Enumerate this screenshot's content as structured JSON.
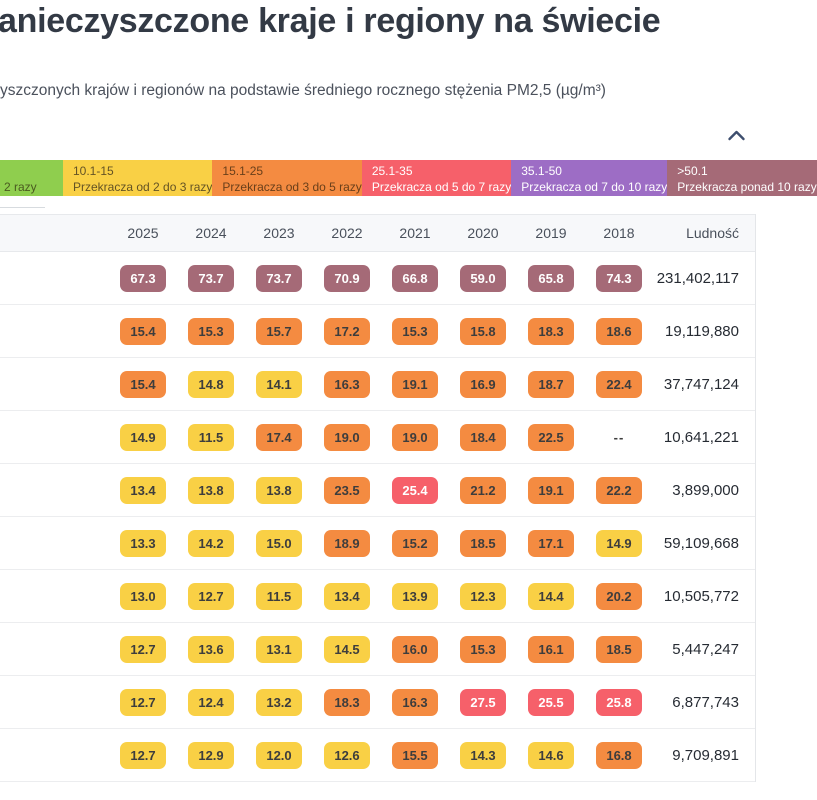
{
  "header": {
    "title": "anieczyszczone kraje i regiony na świecie",
    "subtitle": "yszczonych krajów i regionów na podstawie średniego rocznego stężenia PM2,5 (µg/m³)"
  },
  "legend": {
    "collapse_icon": "chevron-up",
    "segments": [
      {
        "range": "",
        "label": "2 razy",
        "color": "#8fce4e",
        "text_color": "#4a5a20"
      },
      {
        "range": "10.1-15",
        "label": "Przekracza od 2 do 3 razy",
        "color": "#f9d045",
        "text_color": "#645325"
      },
      {
        "range": "15.1-25",
        "label": "Przekracza od 3 do 5 razy",
        "color": "#f48b41",
        "text_color": "#693f1a"
      },
      {
        "range": "25.1-35",
        "label": "Przekracza od 5 do 7 razy",
        "color": "#f6606a",
        "text_color": "#ffffff"
      },
      {
        "range": "35.1-50",
        "label": "Przekracza od 7 do 10 razy",
        "color": "#9d6dc5",
        "text_color": "#ffffff"
      },
      {
        "range": ">50.1",
        "label": "Przekracza ponad 10 razy",
        "color": "#a56a77",
        "text_color": "#ffffff"
      }
    ]
  },
  "badge_categories": [
    {
      "max": 15,
      "color": "#f9d045",
      "text_color": "#3d3d3d"
    },
    {
      "max": 25,
      "color": "#f48b41",
      "text_color": "#3d3d3d"
    },
    {
      "max": 35,
      "color": "#f6606a",
      "text_color": "#ffffff"
    },
    {
      "max": 50,
      "color": "#9d6dc5",
      "text_color": "#ffffff"
    },
    {
      "max": 10000,
      "color": "#a56a77",
      "text_color": "#ffffff"
    }
  ],
  "table": {
    "year_columns": [
      "2025",
      "2024",
      "2023",
      "2022",
      "2021",
      "2020",
      "2019",
      "2018"
    ],
    "population_header": "Ludność",
    "missing_value": "--",
    "rows": [
      {
        "values": [
          "67.3",
          "73.7",
          "73.7",
          "70.9",
          "66.8",
          "59.0",
          "65.8",
          "74.3"
        ],
        "population": "231,402,117"
      },
      {
        "values": [
          "15.4",
          "15.3",
          "15.7",
          "17.2",
          "15.3",
          "15.8",
          "18.3",
          "18.6"
        ],
        "population": "19,119,880"
      },
      {
        "values": [
          "15.4",
          "14.8",
          "14.1",
          "16.3",
          "19.1",
          "16.9",
          "18.7",
          "22.4"
        ],
        "population": "37,747,124"
      },
      {
        "values": [
          "14.9",
          "11.5",
          "17.4",
          "19.0",
          "19.0",
          "18.4",
          "22.5",
          "--"
        ],
        "population": "10,641,221"
      },
      {
        "values": [
          "13.4",
          "13.8",
          "13.8",
          "23.5",
          "25.4",
          "21.2",
          "19.1",
          "22.2"
        ],
        "population": "3,899,000"
      },
      {
        "values": [
          "13.3",
          "14.2",
          "15.0",
          "18.9",
          "15.2",
          "18.5",
          "17.1",
          "14.9"
        ],
        "population": "59,109,668"
      },
      {
        "values": [
          "13.0",
          "12.7",
          "11.5",
          "13.4",
          "13.9",
          "12.3",
          "14.4",
          "20.2"
        ],
        "population": "10,505,772"
      },
      {
        "values": [
          "12.7",
          "13.6",
          "13.1",
          "14.5",
          "16.0",
          "15.3",
          "16.1",
          "18.5"
        ],
        "population": "5,447,247"
      },
      {
        "values": [
          "12.7",
          "12.4",
          "13.2",
          "18.3",
          "16.3",
          "27.5",
          "25.5",
          "25.8"
        ],
        "population": "6,877,743"
      },
      {
        "values": [
          "12.7",
          "12.9",
          "12.0",
          "12.6",
          "15.5",
          "14.3",
          "14.6",
          "16.8"
        ],
        "population": "9,709,891"
      }
    ]
  }
}
